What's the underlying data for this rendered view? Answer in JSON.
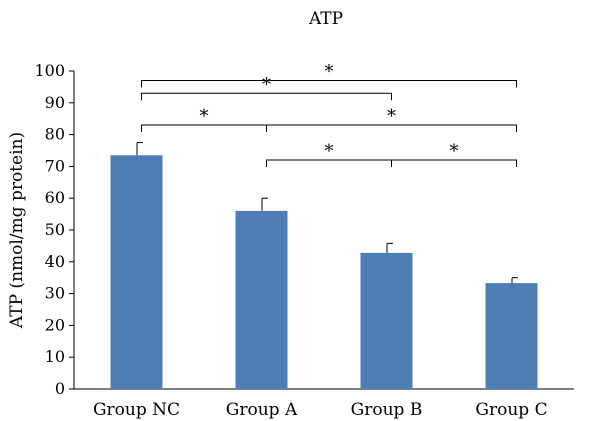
{
  "chart_data": {
    "type": "bar",
    "title": "ATP",
    "xlabel": "",
    "ylabel": "ATP (nmol/mg protein)",
    "categories": [
      "Group NC",
      "Group A",
      "Group B",
      "Group C"
    ],
    "values": [
      73.5,
      56,
      42.8,
      33.3
    ],
    "errors": [
      4,
      4,
      3,
      1.7
    ],
    "ylim": [
      0,
      100
    ],
    "yticks": [
      0,
      10,
      20,
      30,
      40,
      50,
      60,
      70,
      80,
      90,
      100
    ],
    "grid": false,
    "bar_color": "#4f7db5",
    "significance": [
      {
        "from": 0,
        "to": 3,
        "level": 97,
        "label": "*"
      },
      {
        "from": 0,
        "to": 2,
        "level": 93,
        "label": "*"
      },
      {
        "from": 0,
        "to": 1,
        "level": 83,
        "label": "*"
      },
      {
        "from": 1,
        "to": 3,
        "level": 83,
        "label": "*"
      },
      {
        "from": 1,
        "to": 2,
        "level": 72,
        "label": "*"
      },
      {
        "from": 2,
        "to": 3,
        "level": 72,
        "label": "*"
      }
    ]
  }
}
